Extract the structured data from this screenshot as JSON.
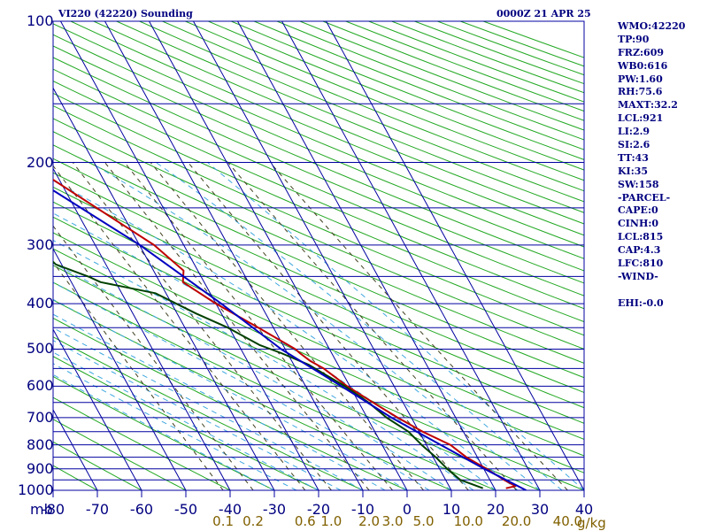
{
  "header": {
    "station_title": "VI220 (42220) Sounding",
    "time_label": "0000Z 21 APR 25"
  },
  "stats": [
    "WMO:42220",
    "TP:90",
    "FRZ:609",
    "WB0:616",
    "PW:1.60",
    "RH:75.6",
    "MAXT:32.2",
    "LCL:921",
    "LI:2.9",
    "SI:2.6",
    "TT:43",
    "KI:35",
    "SW:158",
    "-PARCEL-",
    "CAPE:0",
    "CINH:0",
    "LCL:815",
    "CAP:4.3",
    "LFC:810",
    "-WIND-",
    "",
    "EHI:-0.0"
  ],
  "chart_data": {
    "type": "line",
    "title": "VI220 (42220) Sounding",
    "xlabel": "",
    "ylabel": "mb",
    "xlim": [
      -80,
      40
    ],
    "ylim": [
      1000,
      100
    ],
    "y_scale": "log",
    "grid": true,
    "pressure_ticks": [
      100,
      200,
      300,
      400,
      500,
      600,
      700,
      800,
      900,
      1000
    ],
    "temperature_ticks": [
      -80,
      -70,
      -60,
      -50,
      -40,
      -30,
      -20,
      -10,
      0,
      10,
      20,
      30,
      40
    ],
    "temperature_tick_labels": [
      "-80",
      "-70",
      "-60",
      "-50",
      "-40",
      "-30",
      "-20",
      "-10",
      "0",
      "10",
      "20",
      "30",
      "40"
    ],
    "mixing_ratio_labels": [
      "0.1",
      "0.2",
      "0.6",
      "1.0",
      "2.0",
      "3.0",
      "5.0",
      "10.0",
      "20.0",
      "40.0"
    ],
    "mixing_ratio_unit": "g/kg",
    "series": [
      {
        "key": "temperature",
        "color": "#c00000",
        "points": [
          [
            100,
            -77.1
          ],
          [
            200,
            -45.3
          ],
          [
            300,
            -26.7
          ],
          [
            340,
            -23.2
          ],
          [
            360,
            -24.8
          ],
          [
            400,
            -20.0
          ],
          [
            450,
            -13.4
          ],
          [
            500,
            -7.7
          ],
          [
            510,
            -7.2
          ],
          [
            530,
            -5.8
          ],
          [
            550,
            -3.7
          ],
          [
            600,
            -0.6
          ],
          [
            650,
            3.2
          ],
          [
            700,
            6.9
          ],
          [
            750,
            10.8
          ],
          [
            800,
            15.4
          ],
          [
            850,
            17.5
          ],
          [
            900,
            20.6
          ],
          [
            950,
            23.2
          ],
          [
            980,
            25.0
          ],
          [
            990,
            22.6
          ]
        ]
      },
      {
        "key": "dewpoint",
        "color": "#004000",
        "points": [
          [
            200,
            -64.1
          ],
          [
            250,
            -60.7
          ],
          [
            300,
            -53.5
          ],
          [
            330,
            -51.3
          ],
          [
            350,
            -45.5
          ],
          [
            360,
            -43.4
          ],
          [
            380,
            -32.4
          ],
          [
            420,
            -25.7
          ],
          [
            450,
            -20.3
          ],
          [
            490,
            -15.3
          ],
          [
            510,
            -11.4
          ],
          [
            540,
            -6.6
          ],
          [
            570,
            -3.8
          ],
          [
            600,
            -1.1
          ],
          [
            650,
            2.2
          ],
          [
            700,
            4.4
          ],
          [
            750,
            7.6
          ],
          [
            800,
            8.9
          ],
          [
            850,
            10.6
          ],
          [
            900,
            11.7
          ],
          [
            950,
            13.3
          ],
          [
            990,
            17.4
          ]
        ]
      },
      {
        "key": "parcel",
        "color": "#0000c0",
        "points": [
          [
            150,
            -63.5
          ],
          [
            200,
            -49.3
          ],
          [
            300,
            -29.9
          ],
          [
            400,
            -18.8
          ],
          [
            500,
            -10.9
          ],
          [
            600,
            -1.9
          ],
          [
            700,
            5.5
          ],
          [
            800,
            13.2
          ],
          [
            900,
            20.1
          ],
          [
            1000,
            26.9
          ]
        ]
      }
    ]
  }
}
